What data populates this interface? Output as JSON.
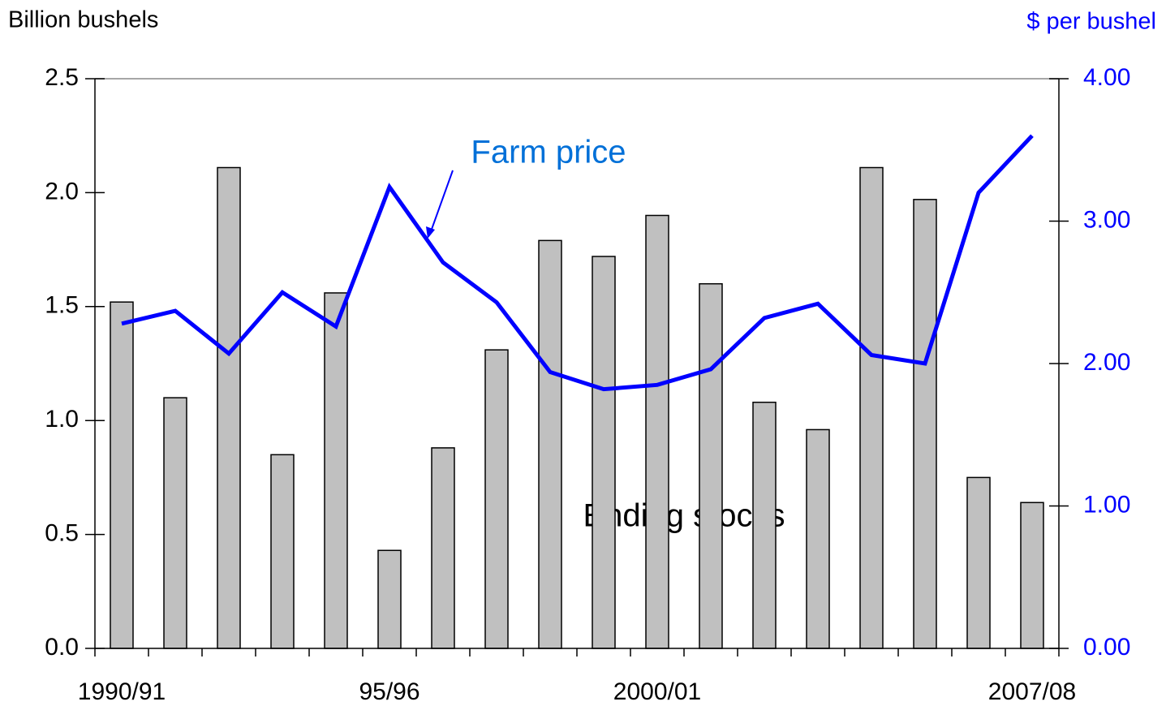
{
  "chart_data": {
    "type": "bar-line",
    "y_label": "Billion bushels",
    "y2_label": "$ per bushel",
    "categories": [
      "1990/91",
      null,
      null,
      null,
      null,
      "95/96",
      null,
      null,
      null,
      null,
      "2000/01",
      null,
      null,
      null,
      null,
      null,
      null,
      "2007/08"
    ],
    "series": [
      {
        "name": "Ending stocks",
        "type": "bar",
        "color": "#c0c0c0",
        "values": [
          1.52,
          1.1,
          2.11,
          0.85,
          1.56,
          0.43,
          0.88,
          1.31,
          1.79,
          1.72,
          1.9,
          1.6,
          1.08,
          0.96,
          2.11,
          1.97,
          0.75,
          0.64
        ]
      },
      {
        "name": "Farm price",
        "type": "line",
        "axis": "y2",
        "color": "#0000ff",
        "values": [
          2.28,
          2.37,
          2.07,
          2.5,
          2.26,
          3.24,
          2.71,
          2.43,
          1.94,
          1.82,
          1.85,
          1.96,
          2.32,
          2.42,
          2.06,
          2.0,
          3.2,
          3.6
        ]
      }
    ],
    "ylim": [
      0,
      2.5
    ],
    "yticks": [
      {
        "value": 0,
        "label": "0.0"
      },
      0.5,
      {
        "value": 1,
        "label": "1.0"
      },
      1.5,
      {
        "value": 2,
        "label": "2.0"
      },
      2.5
    ],
    "y2lim": [
      0,
      4
    ],
    "y2ticks": [
      {
        "value": 0,
        "label": "0.00"
      },
      {
        "value": 1,
        "label": "1.00"
      },
      {
        "value": 2,
        "label": "2.00"
      },
      {
        "value": 3,
        "label": "3.00"
      },
      {
        "value": 4,
        "label": "4.00"
      }
    ],
    "grid": false
  }
}
